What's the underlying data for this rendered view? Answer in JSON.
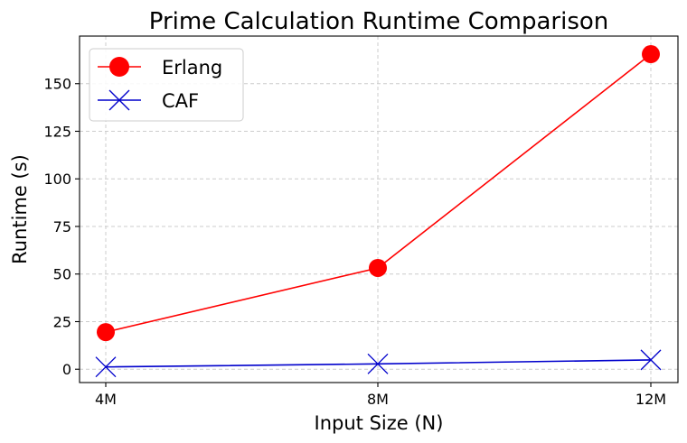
{
  "chart_data": {
    "type": "line",
    "title": "Prime Calculation Runtime Comparison",
    "xlabel": "Input Size (N)",
    "ylabel": "Runtime (s)",
    "categories": [
      "4M",
      "8M",
      "12M"
    ],
    "yticks": [
      0,
      25,
      50,
      75,
      100,
      125,
      150
    ],
    "ylim": [
      -7,
      175
    ],
    "grid": true,
    "legend_position": "top-left",
    "series": [
      {
        "name": "Erlang",
        "values": [
          19.5,
          53.2,
          165.5
        ],
        "color": "#ff0000",
        "marker": "circle"
      },
      {
        "name": "CAF",
        "values": [
          1.2,
          2.8,
          4.9
        ],
        "color": "#0000cc",
        "marker": "x"
      }
    ]
  }
}
